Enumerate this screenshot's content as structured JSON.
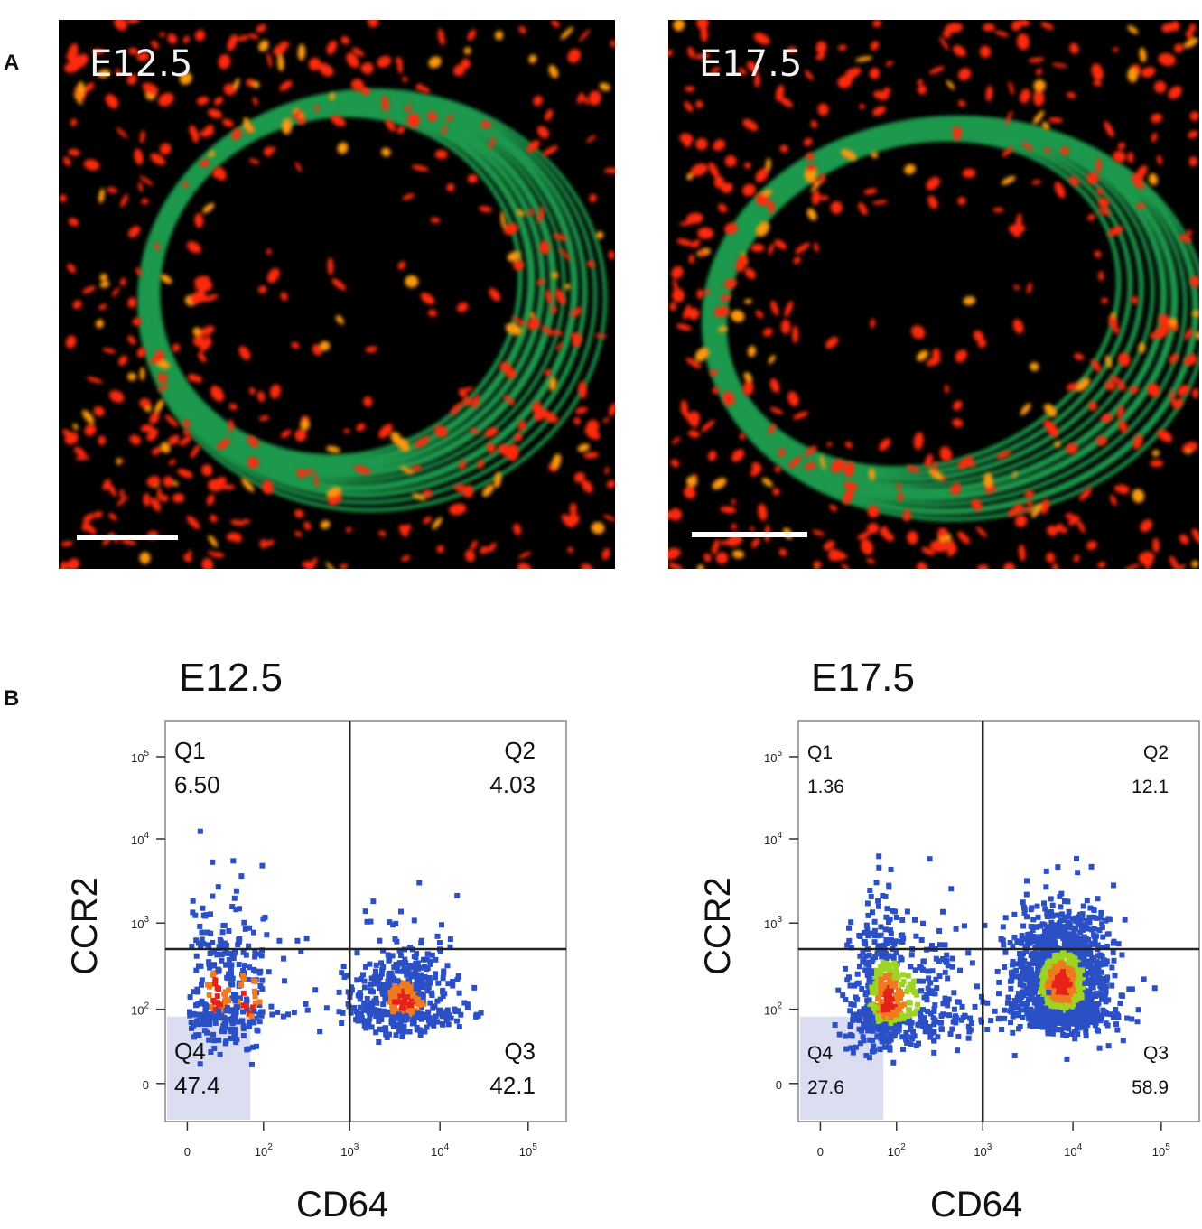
{
  "panel_labels": {
    "a": "A",
    "b": "B"
  },
  "micrographs": [
    {
      "label": "E12.5"
    },
    {
      "label": "E17.5"
    }
  ],
  "colors": {
    "ccr2_channel": "#21b45a",
    "cd64_channel": "#ff2a10",
    "density_low": "#2b4fc4",
    "density_mid": "#9fd322",
    "density_high": "#f07a1e",
    "density_max": "#e8201a"
  },
  "chart_data": [
    {
      "type": "scatter",
      "title": "E12.5",
      "xlabel": "CD64",
      "ylabel": "CCR2",
      "scale": "biexponential",
      "x_ticks": [
        "0",
        "10^2",
        "10^3",
        "10^4",
        "10^5"
      ],
      "y_ticks": [
        "0",
        "10^2",
        "10^3",
        "10^4",
        "10^5"
      ],
      "gate": {
        "x": 1000,
        "y": 500
      },
      "quadrants": [
        {
          "name": "Q1",
          "percent": "6.50"
        },
        {
          "name": "Q2",
          "percent": "4.03"
        },
        {
          "name": "Q3",
          "percent": "42.1"
        },
        {
          "name": "Q4",
          "percent": "47.4"
        }
      ],
      "populations": [
        {
          "center_x": 4000,
          "center_y": 120,
          "spread_x": 0.3,
          "spread_y": 0.38,
          "count": 500
        },
        {
          "center_x": 5,
          "center_y": 150,
          "spread_x": 0.6,
          "spread_y": 0.55,
          "count": 260
        },
        {
          "center_x": 40,
          "center_y": 120,
          "spread_x": 0.5,
          "spread_y": 0.6,
          "count": 90
        }
      ]
    },
    {
      "type": "scatter",
      "title": "E17.5",
      "xlabel": "CD64",
      "ylabel": "CCR2",
      "scale": "biexponential",
      "x_ticks": [
        "0",
        "10^2",
        "10^3",
        "10^4",
        "10^5"
      ],
      "y_ticks": [
        "0",
        "10^2",
        "10^3",
        "10^4",
        "10^5"
      ],
      "gate": {
        "x": 1000,
        "y": 500
      },
      "quadrants": [
        {
          "name": "Q1",
          "percent": "1.36"
        },
        {
          "name": "Q2",
          "percent": "12.1"
        },
        {
          "name": "Q3",
          "percent": "58.9"
        },
        {
          "name": "Q4",
          "percent": "27.6"
        }
      ],
      "populations": [
        {
          "center_x": 7500,
          "center_y": 200,
          "spread_x": 0.28,
          "spread_y": 0.42,
          "count": 1400
        },
        {
          "center_x": 60,
          "center_y": 120,
          "spread_x": 0.55,
          "spread_y": 0.55,
          "count": 700
        }
      ]
    }
  ]
}
